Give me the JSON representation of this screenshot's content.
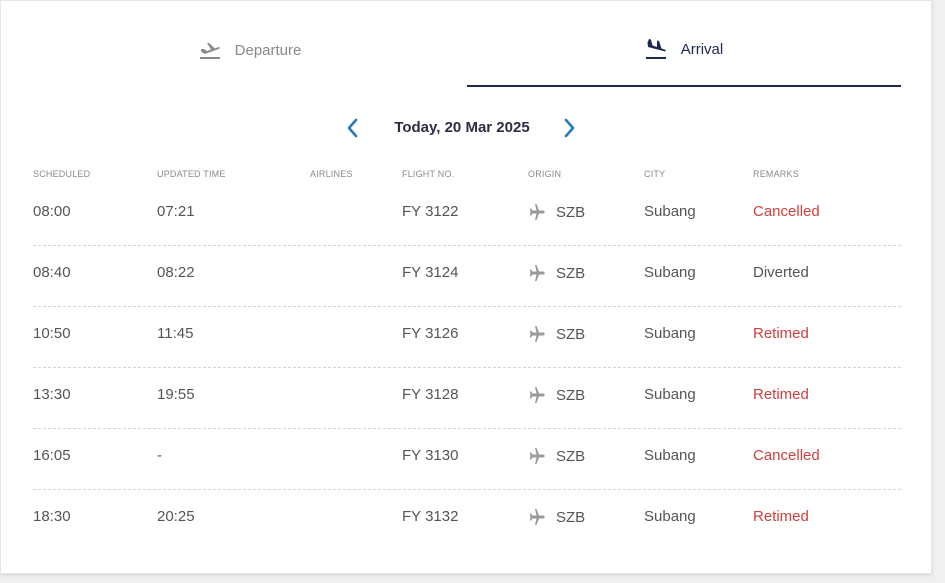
{
  "tabs": [
    {
      "label": "Departure",
      "icon": "departure-plane-icon",
      "active": false
    },
    {
      "label": "Arrival",
      "icon": "arrival-plane-icon",
      "active": true
    }
  ],
  "date_nav": {
    "label": "Today, 20 Mar 2025",
    "prev_icon": "chevron-left-icon",
    "next_icon": "chevron-right-icon"
  },
  "table": {
    "headers": {
      "scheduled": "SCHEDULED",
      "updated": "UPDATED TIME",
      "airlines": "AIRLINES",
      "flight": "FLIGHT NO.",
      "origin": "ORIGIN",
      "city": "CITY",
      "remarks": "REMARKS"
    },
    "rows": [
      {
        "scheduled": "08:00",
        "updated": "07:21",
        "flight": "FY 3122",
        "origin": "SZB",
        "city": "Subang",
        "remarks": "Cancelled",
        "remark_color": "#d0403c"
      },
      {
        "scheduled": "08:40",
        "updated": "08:22",
        "flight": "FY 3124",
        "origin": "SZB",
        "city": "Subang",
        "remarks": "Diverted",
        "remark_color": "#555555"
      },
      {
        "scheduled": "10:50",
        "updated": "11:45",
        "flight": "FY 3126",
        "origin": "SZB",
        "city": "Subang",
        "remarks": "Retimed",
        "remark_color": "#d0403c"
      },
      {
        "scheduled": "13:30",
        "updated": "19:55",
        "flight": "FY 3128",
        "origin": "SZB",
        "city": "Subang",
        "remarks": "Retimed",
        "remark_color": "#d0403c"
      },
      {
        "scheduled": "16:05",
        "updated": "-",
        "flight": "FY 3130",
        "origin": "SZB",
        "city": "Subang",
        "remarks": "Cancelled",
        "remark_color": "#d0403c"
      },
      {
        "scheduled": "18:30",
        "updated": "20:25",
        "flight": "FY 3132",
        "origin": "SZB",
        "city": "Subang",
        "remarks": "Retimed",
        "remark_color": "#d0403c"
      }
    ]
  },
  "colors": {
    "accent": "#1c2a4f",
    "arrow": "#2a7ab8",
    "alert": "#d0403c"
  }
}
